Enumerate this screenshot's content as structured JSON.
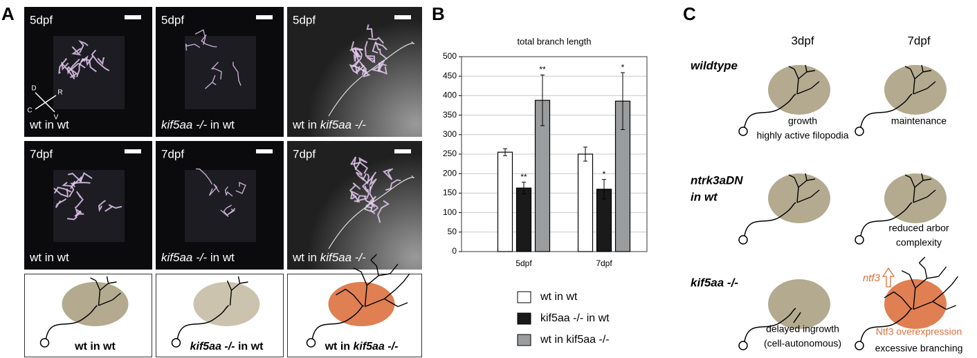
{
  "panel_a": {
    "letter": "A",
    "images": [
      {
        "stage": "5dpf",
        "caption": [
          {
            "text": "wt in wt"
          }
        ]
      },
      {
        "stage": "5dpf",
        "caption": [
          {
            "text": "kif5aa -/-",
            "italic": true
          },
          {
            "text": " in wt"
          }
        ]
      },
      {
        "stage": "5dpf",
        "caption": [
          {
            "text": "wt in "
          },
          {
            "text": "kif5aa -/-",
            "italic": true
          }
        ]
      },
      {
        "stage": "7dpf",
        "caption": [
          {
            "text": "wt in wt"
          }
        ]
      },
      {
        "stage": "7dpf",
        "caption": [
          {
            "text": "kif5aa -/-",
            "italic": true
          },
          {
            "text": " in wt"
          }
        ]
      },
      {
        "stage": "7dpf",
        "caption": [
          {
            "text": "wt in "
          },
          {
            "text": "kif5aa -/-",
            "italic": true
          }
        ]
      }
    ],
    "compass": [
      "D",
      "R",
      "C",
      "V"
    ],
    "schematics": [
      {
        "caption": [
          {
            "text": "wt in wt"
          }
        ]
      },
      {
        "caption": [
          {
            "text": "kif5aa -/-",
            "italic": true
          },
          {
            "text": " in wt"
          }
        ]
      },
      {
        "caption": [
          {
            "text": "wt in "
          },
          {
            "text": "kif5aa -/-",
            "italic": true
          }
        ]
      }
    ]
  },
  "panel_b": {
    "letter": "B"
  },
  "chart_data": {
    "type": "bar",
    "title": "total branch length",
    "categories": [
      "5dpf",
      "7dpf"
    ],
    "series": [
      {
        "name": "wt in wt",
        "color": "#ffffff",
        "values": [
          255,
          250
        ],
        "errors": [
          9,
          18
        ]
      },
      {
        "name": "kif5aa -/- in wt",
        "color": "#1a1a1a",
        "values": [
          163,
          160
        ],
        "errors": [
          15,
          25
        ]
      },
      {
        "name": "wt in kif5aa -/-",
        "color": "#9b9c9e",
        "values": [
          388,
          386
        ],
        "errors": [
          65,
          73
        ]
      }
    ],
    "annotations": [
      {
        "series": 1,
        "category": 0,
        "text": "**"
      },
      {
        "series": 2,
        "category": 0,
        "text": "**"
      },
      {
        "series": 1,
        "category": 1,
        "text": "*"
      },
      {
        "series": 2,
        "category": 1,
        "text": "*"
      }
    ],
    "ylim": [
      0,
      500
    ],
    "yticks": [
      0,
      50,
      100,
      150,
      200,
      250,
      300,
      350,
      400,
      450,
      500
    ],
    "grid": true
  },
  "panel_c": {
    "letter": "C",
    "columns": [
      "3dpf",
      "7dpf"
    ],
    "rows": [
      {
        "label": [
          "wildtype"
        ],
        "cells": [
          {
            "caption": [
              "growth",
              "highly active filopodia"
            ]
          },
          {
            "caption": [
              "maintenance"
            ]
          }
        ]
      },
      {
        "label": [
          "ntrk3aDN",
          "in wt"
        ],
        "cells": [
          {
            "caption": []
          },
          {
            "caption": [
              "reduced arbor",
              "complexity"
            ]
          }
        ]
      },
      {
        "label": [
          "kif5aa -/-"
        ],
        "cells": [
          {
            "caption": [
              "delayed ingrowth",
              "(cell-autonomous)"
            ]
          },
          {
            "caption": [
              "excessive branching"
            ],
            "note": "Ntf3 overexpression"
          }
        ]
      }
    ],
    "arrow_label": "ntf3"
  }
}
